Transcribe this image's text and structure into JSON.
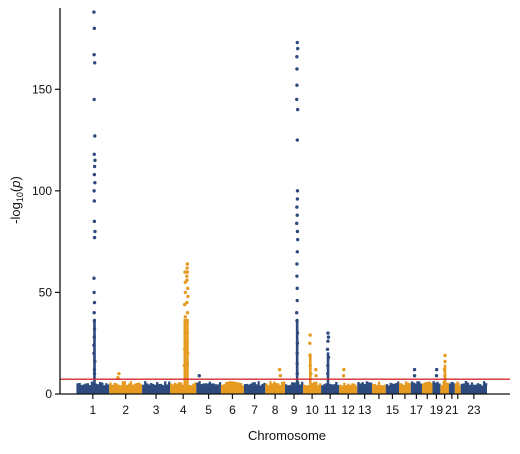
{
  "colors": {
    "odd_chromosomes": "#2c4a7e",
    "even_chromosomes": "#e69a1f",
    "threshold_line": "#d6282f",
    "axis": "#111111"
  },
  "chart_data": {
    "type": "scatter",
    "subtype": "manhattan",
    "title": "",
    "xlabel": "Chromosome",
    "ylabel_parts": {
      "prefix": "-log",
      "subscript": "10",
      "suffix": "(",
      "italic": "p",
      "close": ")"
    },
    "ylim": [
      0,
      190
    ],
    "yticks": [
      0,
      50,
      100,
      150
    ],
    "xticks": [
      "1",
      "2",
      "3",
      "4",
      "5",
      "6",
      "7",
      "8",
      "9",
      "10",
      "11",
      "12",
      "13",
      "15",
      "17",
      "19",
      "21",
      "23"
    ],
    "chromosomes": [
      {
        "chr": "1",
        "start": 0.0,
        "end": 1.0
      },
      {
        "chr": "2",
        "start": 1.0,
        "end": 2.0
      },
      {
        "chr": "3",
        "start": 2.0,
        "end": 2.85
      },
      {
        "chr": "4",
        "start": 2.85,
        "end": 3.65
      },
      {
        "chr": "5",
        "start": 3.65,
        "end": 4.4
      },
      {
        "chr": "6",
        "start": 4.4,
        "end": 5.1
      },
      {
        "chr": "7",
        "start": 5.1,
        "end": 5.75
      },
      {
        "chr": "8",
        "start": 5.75,
        "end": 6.35
      },
      {
        "chr": "9",
        "start": 6.35,
        "end": 6.9
      },
      {
        "chr": "10",
        "start": 6.9,
        "end": 7.45
      },
      {
        "chr": "11",
        "start": 7.45,
        "end": 8.0
      },
      {
        "chr": "12",
        "start": 8.0,
        "end": 8.55
      },
      {
        "chr": "13",
        "start": 8.55,
        "end": 9.0
      },
      {
        "chr": "14",
        "start": 9.0,
        "end": 9.42
      },
      {
        "chr": "15",
        "start": 9.42,
        "end": 9.82
      },
      {
        "chr": "16",
        "start": 9.82,
        "end": 10.18
      },
      {
        "chr": "17",
        "start": 10.18,
        "end": 10.52
      },
      {
        "chr": "18",
        "start": 10.52,
        "end": 10.84
      },
      {
        "chr": "19",
        "start": 10.84,
        "end": 11.08
      },
      {
        "chr": "20",
        "start": 11.08,
        "end": 11.34
      },
      {
        "chr": "21",
        "start": 11.34,
        "end": 11.52
      },
      {
        "chr": "22",
        "start": 11.52,
        "end": 11.7
      },
      {
        "chr": "23",
        "start": 11.7,
        "end": 12.5
      }
    ],
    "x_range": [
      -0.5,
      13.2
    ],
    "significance_threshold": 7.3,
    "peaks": [
      {
        "chr": "1",
        "pos": 0.55,
        "values": [
          188,
          180,
          167,
          163,
          145,
          127,
          118,
          115,
          112,
          108,
          104,
          100,
          95,
          85,
          80,
          77,
          57,
          50,
          45,
          40,
          36,
          32,
          28,
          24,
          20,
          16,
          12,
          10
        ]
      },
      {
        "chr": "2",
        "pos": 1.28,
        "values": [
          10,
          8
        ]
      },
      {
        "chr": "4",
        "pos": 3.38,
        "values": [
          64,
          62,
          60,
          58,
          56,
          52,
          48,
          45,
          40,
          36,
          30,
          25,
          20,
          15,
          10
        ]
      },
      {
        "chr": "4",
        "pos": 3.3,
        "values": [
          60,
          55,
          50,
          44,
          38,
          30,
          22,
          14
        ]
      },
      {
        "chr": "5",
        "pos": 3.75,
        "values": [
          9
        ]
      },
      {
        "chr": "8",
        "pos": 6.2,
        "values": [
          12,
          9
        ]
      },
      {
        "chr": "9",
        "pos": 6.72,
        "values": [
          173,
          170,
          166,
          160,
          152,
          145,
          140,
          125,
          100,
          96,
          92,
          88,
          84,
          80,
          76,
          70,
          64,
          58,
          52,
          46,
          40,
          36,
          30,
          25,
          20,
          15,
          10
        ]
      },
      {
        "chr": "10",
        "pos": 7.12,
        "values": [
          29,
          25,
          19,
          14,
          10
        ]
      },
      {
        "chr": "10",
        "pos": 7.28,
        "values": [
          12,
          9
        ]
      },
      {
        "chr": "11",
        "pos": 7.66,
        "values": [
          30,
          28,
          26,
          22,
          18,
          14,
          10
        ]
      },
      {
        "chr": "12",
        "pos": 8.15,
        "values": [
          12,
          9
        ]
      },
      {
        "chr": "17",
        "pos": 10.3,
        "values": [
          12,
          9
        ]
      },
      {
        "chr": "19",
        "pos": 10.95,
        "values": [
          12,
          9
        ]
      },
      {
        "chr": "20",
        "pos": 11.22,
        "values": [
          19,
          16,
          12,
          9
        ]
      }
    ]
  }
}
